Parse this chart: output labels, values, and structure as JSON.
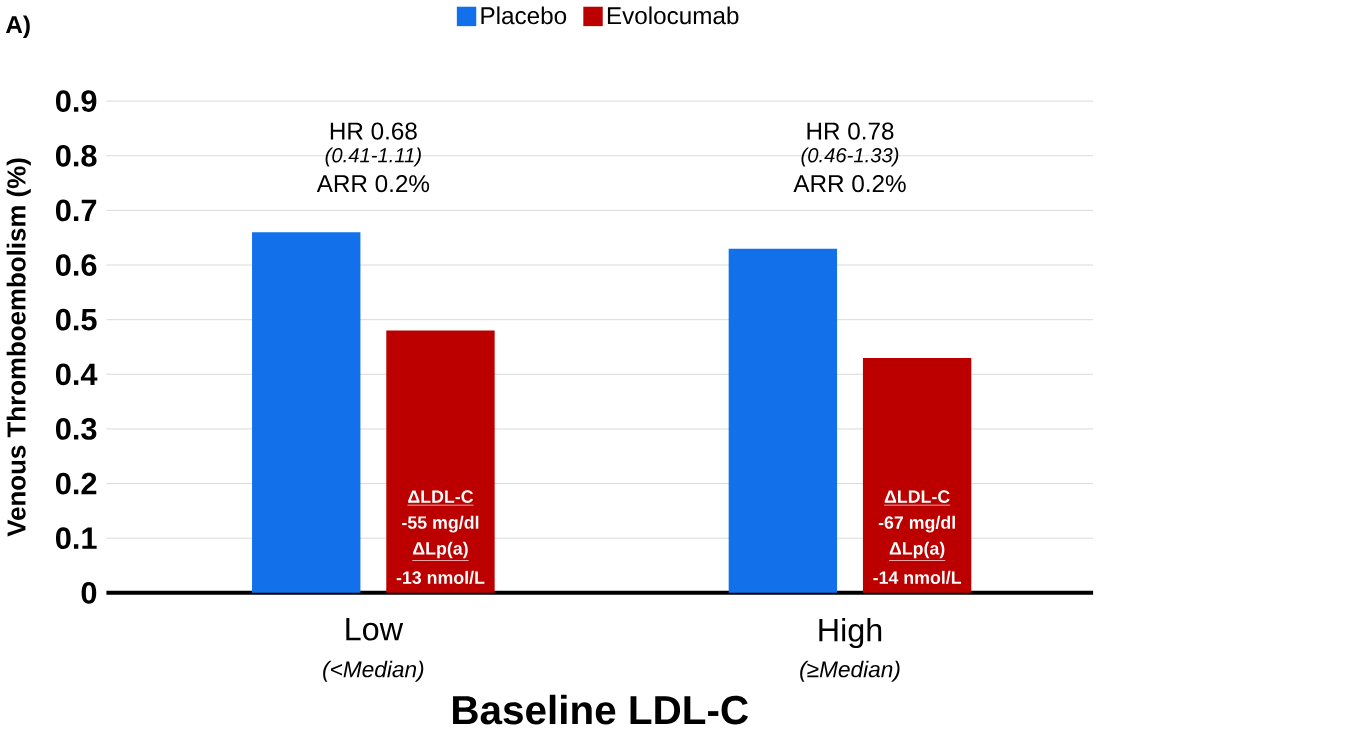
{
  "chart_data": {
    "type": "bar",
    "xlabel": "Baseline LDL-C",
    "ylabel": "Venous Thromboembolism (%)",
    "categories": [
      "Low",
      "High"
    ],
    "series": [
      {
        "name": "Placebo",
        "color": "#1170ea",
        "values": [
          0.66,
          0.63
        ]
      },
      {
        "name": "Evolocumab",
        "color": "#bc0000",
        "values": [
          0.48,
          0.43
        ]
      }
    ],
    "ylim": [
      0,
      0.9
    ],
    "yticks": [
      0,
      0.1,
      0.2,
      0.3,
      0.4,
      0.5,
      0.6,
      0.7,
      0.8,
      0.9
    ],
    "grid": "y",
    "legend": "top",
    "annotations": [
      "HR 0.68",
      "*(0.41-1.11)*",
      "ARR 0.2%",
      "HR 0.78",
      "*(0.46-1.33)*",
      "ARR 0.2%",
      "ΔLDL-C",
      "-55 mg/dl",
      "ΔLp(a)",
      "-13 nmol/L",
      "ΔLDL-C",
      "-67 mg/dl",
      "ΔLp(a)",
      "-14 nmol/L",
      "*(<Median)*",
      "*(≥Median)*",
      "A)"
    ]
  }
}
